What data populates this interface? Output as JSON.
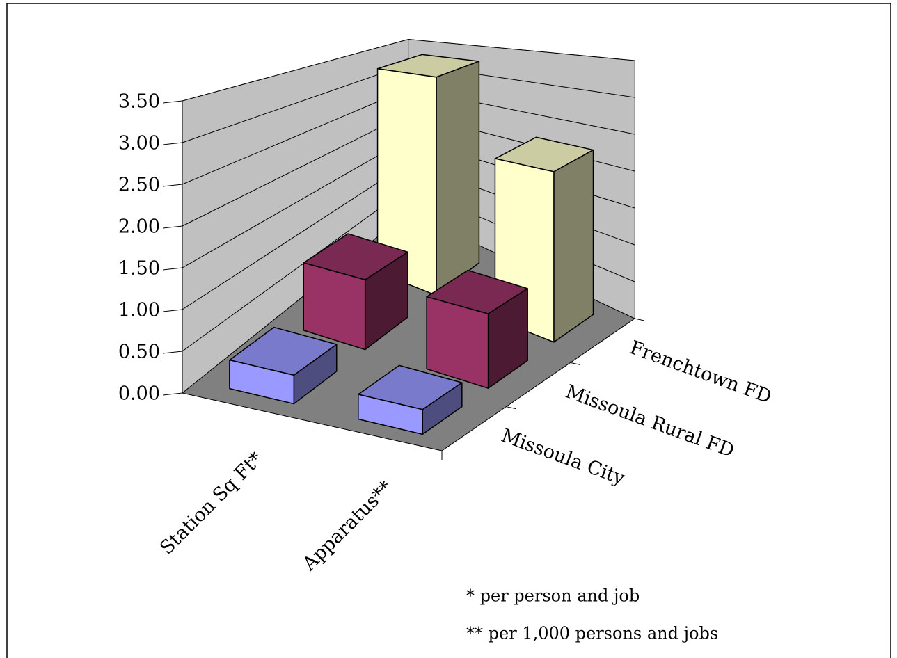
{
  "chart_data": {
    "type": "bar3d",
    "categories": [
      "Station Sq Ft*",
      "Apparatus**"
    ],
    "series": [
      {
        "name": "Missoula City",
        "color": "#9999ff",
        "values": [
          0.35,
          0.3
        ]
      },
      {
        "name": "Missoula Rural FD",
        "color": "#993366",
        "values": [
          0.95,
          0.95
        ]
      },
      {
        "name": "Frenchtown FD",
        "color": "#ffffcc",
        "values": [
          3.35,
          2.3
        ]
      }
    ],
    "ylim": [
      0,
      3.5
    ],
    "yticks": [
      {
        "value": 0,
        "label": "0.00"
      },
      {
        "value": 0.5,
        "label": "0.50"
      },
      {
        "value": 1,
        "label": "1.00"
      },
      {
        "value": 1.5,
        "label": "1.50"
      },
      {
        "value": 2,
        "label": "2.00"
      },
      {
        "value": 2.5,
        "label": "2.50"
      },
      {
        "value": 3,
        "label": "3.00"
      },
      {
        "value": 3.5,
        "label": "3.50"
      }
    ],
    "grid": true,
    "notes": [
      "* per person and job",
      "** per 1,000 persons and jobs"
    ]
  }
}
